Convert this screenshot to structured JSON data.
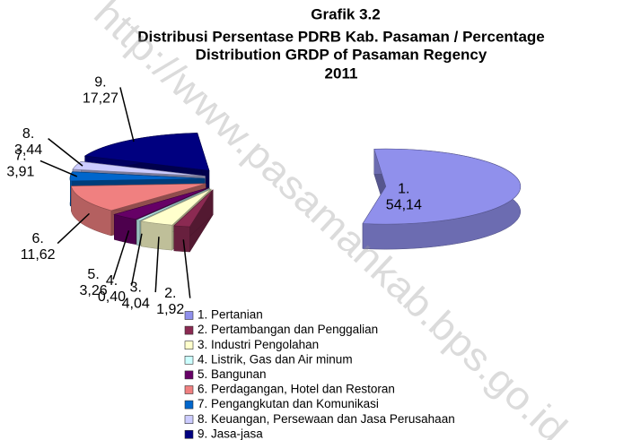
{
  "chart_data": {
    "type": "pie3d",
    "title": [
      "Grafik 3.2",
      "Distribusi Persentase PDRB Kab. Pasaman / Percentage",
      "Distribution GRDP of Pasaman Regency",
      "2011"
    ],
    "categories": [
      "1. Pertanian",
      "2. Pertambangan dan Penggalian",
      "3. Industri Pengolahan",
      "4. Listrik, Gas dan Air minum",
      "5. Bangunan",
      "6. Perdagangan, Hotel dan Restoran",
      "7. Pengangkutan dan Komunikasi",
      "8. Keuangan, Persewaan dan Jasa Perusahaan",
      "9. Jasa-jasa"
    ],
    "slice_numbers": [
      "1.",
      "2.",
      "3.",
      "4.",
      "5.",
      "6.",
      "7.",
      "8.",
      "9."
    ],
    "values": [
      54.14,
      1.92,
      4.04,
      0.4,
      3.26,
      11.62,
      3.91,
      3.44,
      17.27
    ],
    "value_labels": [
      "54,14",
      "1,92",
      "4,04",
      "0,40",
      "3,26",
      "11,62",
      "3,91",
      "3,44",
      "17,27"
    ],
    "colors": [
      "#9090ec",
      "#8b2a52",
      "#ffffcc",
      "#ccffff",
      "#660066",
      "#f08080",
      "#0066cc",
      "#ccccff",
      "#000080"
    ],
    "legend": "bottom",
    "watermark": "http://www.pasamankab.bps.go.id"
  }
}
